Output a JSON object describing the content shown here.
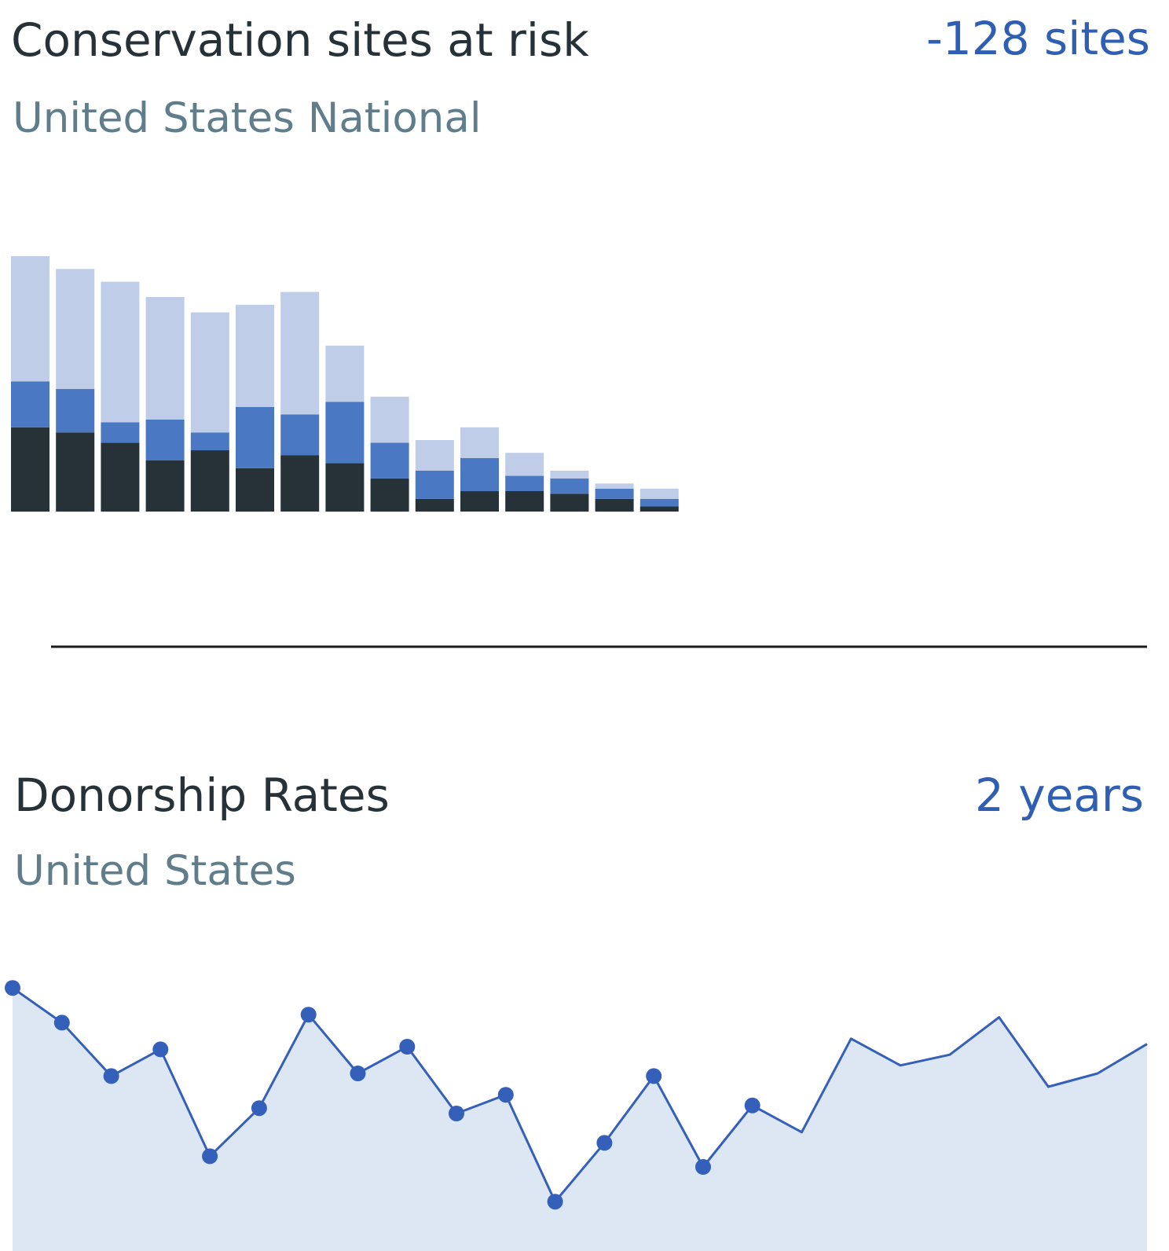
{
  "colors": {
    "bar_light": "#bfcde8",
    "bar_mid": "#4a78c2",
    "bar_dark": "#263238",
    "line": "#3460b9",
    "area": "#dde6f3",
    "divider": "#1a1a1a"
  },
  "card1": {
    "title": "Conservation sites at risk",
    "subtitle": "United States National",
    "metric": "-128 sites"
  },
  "card2": {
    "title": "Donorship Rates",
    "subtitle": "United States",
    "metric": "2 years"
  },
  "chart_data": [
    {
      "type": "bar",
      "stacked": true,
      "ylim": [
        0,
        100
      ],
      "series": [
        {
          "values": [
            33,
            31,
            27,
            20,
            24,
            17,
            22,
            19,
            13,
            5,
            8,
            8,
            7,
            5,
            2
          ]
        },
        {
          "values": [
            18,
            17,
            8,
            16,
            7,
            24,
            16,
            24,
            14,
            11,
            13,
            6,
            6,
            4,
            3
          ]
        },
        {
          "values": [
            49,
            47,
            55,
            48,
            47,
            40,
            48,
            22,
            18,
            12,
            12,
            9,
            3,
            2,
            4
          ]
        }
      ],
      "grid": false,
      "legend": "none"
    },
    {
      "type": "area",
      "ylim": [
        0,
        100
      ],
      "x": [
        1,
        2,
        3,
        4,
        5,
        6,
        7,
        8,
        9,
        10,
        11,
        12,
        13,
        14,
        15,
        16,
        17,
        18,
        19,
        20,
        21,
        22,
        23,
        24
      ],
      "values": [
        92,
        79,
        59,
        69,
        29,
        47,
        82,
        60,
        70,
        45,
        52,
        12,
        34,
        59,
        25,
        48,
        38,
        73,
        63,
        67,
        81,
        55,
        60,
        71
      ],
      "marked_points": 16,
      "grid": false,
      "legend": "none"
    }
  ]
}
